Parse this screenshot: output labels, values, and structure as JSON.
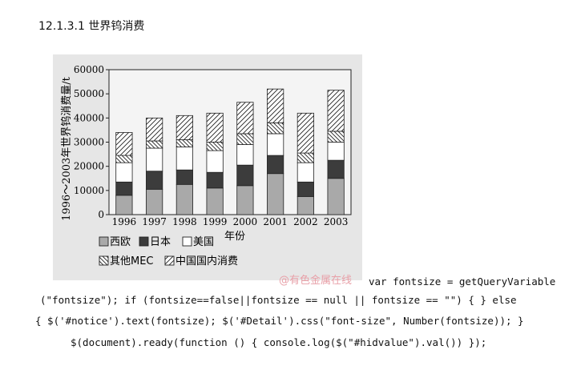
{
  "heading": "12.1.3.1 世界钨消费",
  "chart_data": {
    "type": "stacked-bar",
    "ylabel": "1996～2003年世界钨消费量/t",
    "xlabel": "年份",
    "ylim": [
      0,
      60000
    ],
    "yticks": [
      "0",
      "10000",
      "20000",
      "30000",
      "40000",
      "50000",
      "60000"
    ],
    "categories": [
      "1996",
      "1997",
      "1998",
      "1999",
      "2000",
      "2001",
      "2002",
      "2003"
    ],
    "series": [
      {
        "name": "西欧",
        "fill": "#a9a9a9",
        "values": [
          8000,
          10500,
          12500,
          11000,
          12000,
          17000,
          7500,
          15000
        ]
      },
      {
        "name": "日本",
        "fill": "#3c3c3c",
        "values": [
          5500,
          7500,
          6000,
          6500,
          8500,
          7500,
          6000,
          7500
        ]
      },
      {
        "name": "美国",
        "fill": "#ffffff",
        "values": [
          8000,
          9500,
          9500,
          9000,
          8500,
          9000,
          8000,
          7500
        ]
      },
      {
        "name": "其他MEC",
        "fill": "hatch-left",
        "values": [
          3000,
          3000,
          3000,
          3500,
          4500,
          4500,
          4000,
          4500
        ]
      },
      {
        "name": "中国国内消费",
        "fill": "hatch-right",
        "values": [
          9500,
          9500,
          10000,
          12000,
          13000,
          14000,
          16500,
          17000
        ]
      }
    ]
  },
  "watermark": "@有色金属在线",
  "code_lines": [
    "var fontsize = getQueryVariable",
    "(\"fontsize\"); if (fontsize==false||fontsize == null || fontsize == \"\") { } else",
    "{ $('#notice').text(fontsize); $('#Detail').css(\"font-size\", Number(fontsize)); }",
    "$(document).ready(function () { console.log($(\"#hidvalue\").val()) });"
  ]
}
